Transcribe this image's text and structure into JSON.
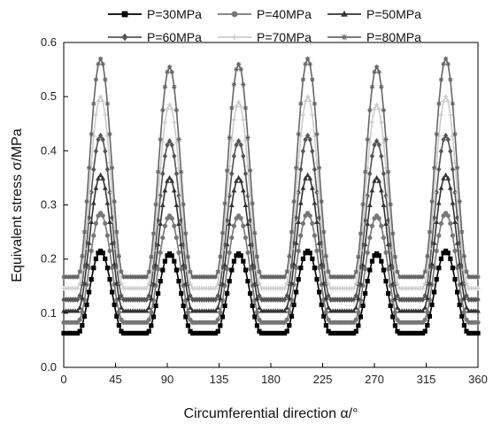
{
  "chart_data": {
    "type": "line",
    "title": "",
    "xlabel": "Circumferential direction  α/°",
    "ylabel": "Equivalent stress  σ/MPa",
    "xlim": [
      0,
      360
    ],
    "ylim": [
      0.0,
      0.6
    ],
    "xticks": [
      0,
      45,
      90,
      135,
      180,
      225,
      270,
      315,
      360
    ],
    "yticks": [
      0.0,
      0.1,
      0.2,
      0.3,
      0.4,
      0.5,
      0.6
    ],
    "xtick_labels": [
      "0",
      "45",
      "90",
      "135",
      "180",
      "225",
      "270",
      "315",
      "360"
    ],
    "ytick_labels": [
      "0.0",
      "0.1",
      "0.2",
      "0.3",
      "0.4",
      "0.5",
      "0.6"
    ],
    "grid": false,
    "legend_position": "top",
    "peak_angles": [
      32,
      92,
      152,
      212,
      272,
      332
    ],
    "series": [
      {
        "name": "P=30MPa",
        "color": "#000000",
        "marker": "square",
        "base": 0.063,
        "peaks": [
          0.215,
          0.21,
          0.21,
          0.215,
          0.21,
          0.215
        ]
      },
      {
        "name": "P=40MPa",
        "color": "#777777",
        "marker": "circle",
        "base": 0.083,
        "peaks": [
          0.285,
          0.28,
          0.28,
          0.285,
          0.28,
          0.285
        ]
      },
      {
        "name": "P=50MPa",
        "color": "#333333",
        "marker": "triangle",
        "base": 0.104,
        "peaks": [
          0.355,
          0.35,
          0.35,
          0.355,
          0.35,
          0.355
        ]
      },
      {
        "name": "P=60MPa",
        "color": "#555555",
        "marker": "diamond",
        "base": 0.125,
        "peaks": [
          0.428,
          0.418,
          0.418,
          0.428,
          0.418,
          0.428
        ]
      },
      {
        "name": "P=70MPa",
        "color": "#cccccc",
        "marker": "plus",
        "base": 0.146,
        "peaks": [
          0.5,
          0.485,
          0.49,
          0.5,
          0.485,
          0.5
        ]
      },
      {
        "name": "P=80MPa",
        "color": "#666666",
        "marker": "star",
        "base": 0.167,
        "peaks": [
          0.57,
          0.555,
          0.56,
          0.57,
          0.555,
          0.57
        ]
      }
    ]
  }
}
